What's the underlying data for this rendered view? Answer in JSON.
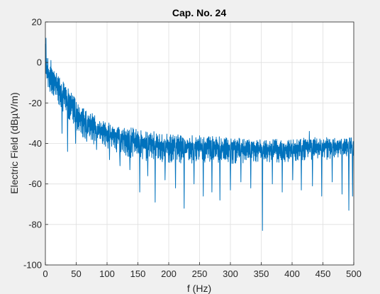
{
  "chart_data": {
    "type": "line",
    "title": "Cap. No. 24",
    "xlabel": "f (Hz)",
    "ylabel": "Electric Field (dBµV/m)",
    "xlim": [
      0,
      500
    ],
    "ylim": [
      -100,
      20
    ],
    "xticks": [
      0,
      50,
      100,
      150,
      200,
      250,
      300,
      350,
      400,
      450,
      500
    ],
    "yticks": [
      -100,
      -80,
      -60,
      -40,
      -20,
      0,
      20
    ],
    "grid": true,
    "colors": {
      "series": "#0072BD",
      "axes": "#262626",
      "grid": "#dfdfdf",
      "plot_bg": "#ffffff",
      "figure_bg": "#f0f0f0"
    },
    "series": [
      {
        "sampling": "approx. 1 point per Hz; upper envelope and deep notches estimated from gridlines",
        "envelope": {
          "x": [
            0,
            1,
            3,
            5,
            10,
            20,
            30,
            40,
            50,
            60,
            75,
            100,
            125,
            150,
            175,
            200,
            250,
            300,
            350,
            400,
            425,
            450,
            475,
            500
          ],
          "upper": [
            12,
            9,
            2,
            0,
            -2,
            -6,
            -10,
            -14,
            -18,
            -22,
            -25,
            -29,
            -31,
            -33,
            -34,
            -35,
            -36,
            -37,
            -38,
            -38,
            -37,
            -37,
            -37,
            -37
          ],
          "lower": [
            -4,
            -7,
            -12,
            -14,
            -16,
            -20,
            -25,
            -29,
            -33,
            -37,
            -40,
            -44,
            -46,
            -48,
            -49,
            -50,
            -50,
            -50,
            -50,
            -49,
            -48,
            -48,
            -48,
            -48
          ]
        },
        "notches": [
          {
            "x": 27,
            "y": -35
          },
          {
            "x": 36,
            "y": -44
          },
          {
            "x": 49,
            "y": -40
          },
          {
            "x": 67,
            "y": -39
          },
          {
            "x": 83,
            "y": -43
          },
          {
            "x": 104,
            "y": -48
          },
          {
            "x": 121,
            "y": -51
          },
          {
            "x": 137,
            "y": -53
          },
          {
            "x": 153,
            "y": -64
          },
          {
            "x": 166,
            "y": -56
          },
          {
            "x": 178,
            "y": -69
          },
          {
            "x": 194,
            "y": -58
          },
          {
            "x": 211,
            "y": -62
          },
          {
            "x": 225,
            "y": -72
          },
          {
            "x": 241,
            "y": -60
          },
          {
            "x": 256,
            "y": -66
          },
          {
            "x": 270,
            "y": -64
          },
          {
            "x": 283,
            "y": -68
          },
          {
            "x": 300,
            "y": -63
          },
          {
            "x": 317,
            "y": -59
          },
          {
            "x": 333,
            "y": -62
          },
          {
            "x": 352,
            "y": -83
          },
          {
            "x": 368,
            "y": -60
          },
          {
            "x": 384,
            "y": -64
          },
          {
            "x": 401,
            "y": -58
          },
          {
            "x": 415,
            "y": -63
          },
          {
            "x": 433,
            "y": -61
          },
          {
            "x": 448,
            "y": -66
          },
          {
            "x": 465,
            "y": -59
          },
          {
            "x": 481,
            "y": -65
          },
          {
            "x": 492,
            "y": -73
          },
          {
            "x": 498,
            "y": -66
          }
        ],
        "peaks": [
          {
            "x": 1,
            "y": 12
          },
          {
            "x": 4,
            "y": 2
          },
          {
            "x": 9,
            "y": 1
          },
          {
            "x": 428,
            "y": -34
          }
        ]
      }
    ]
  }
}
